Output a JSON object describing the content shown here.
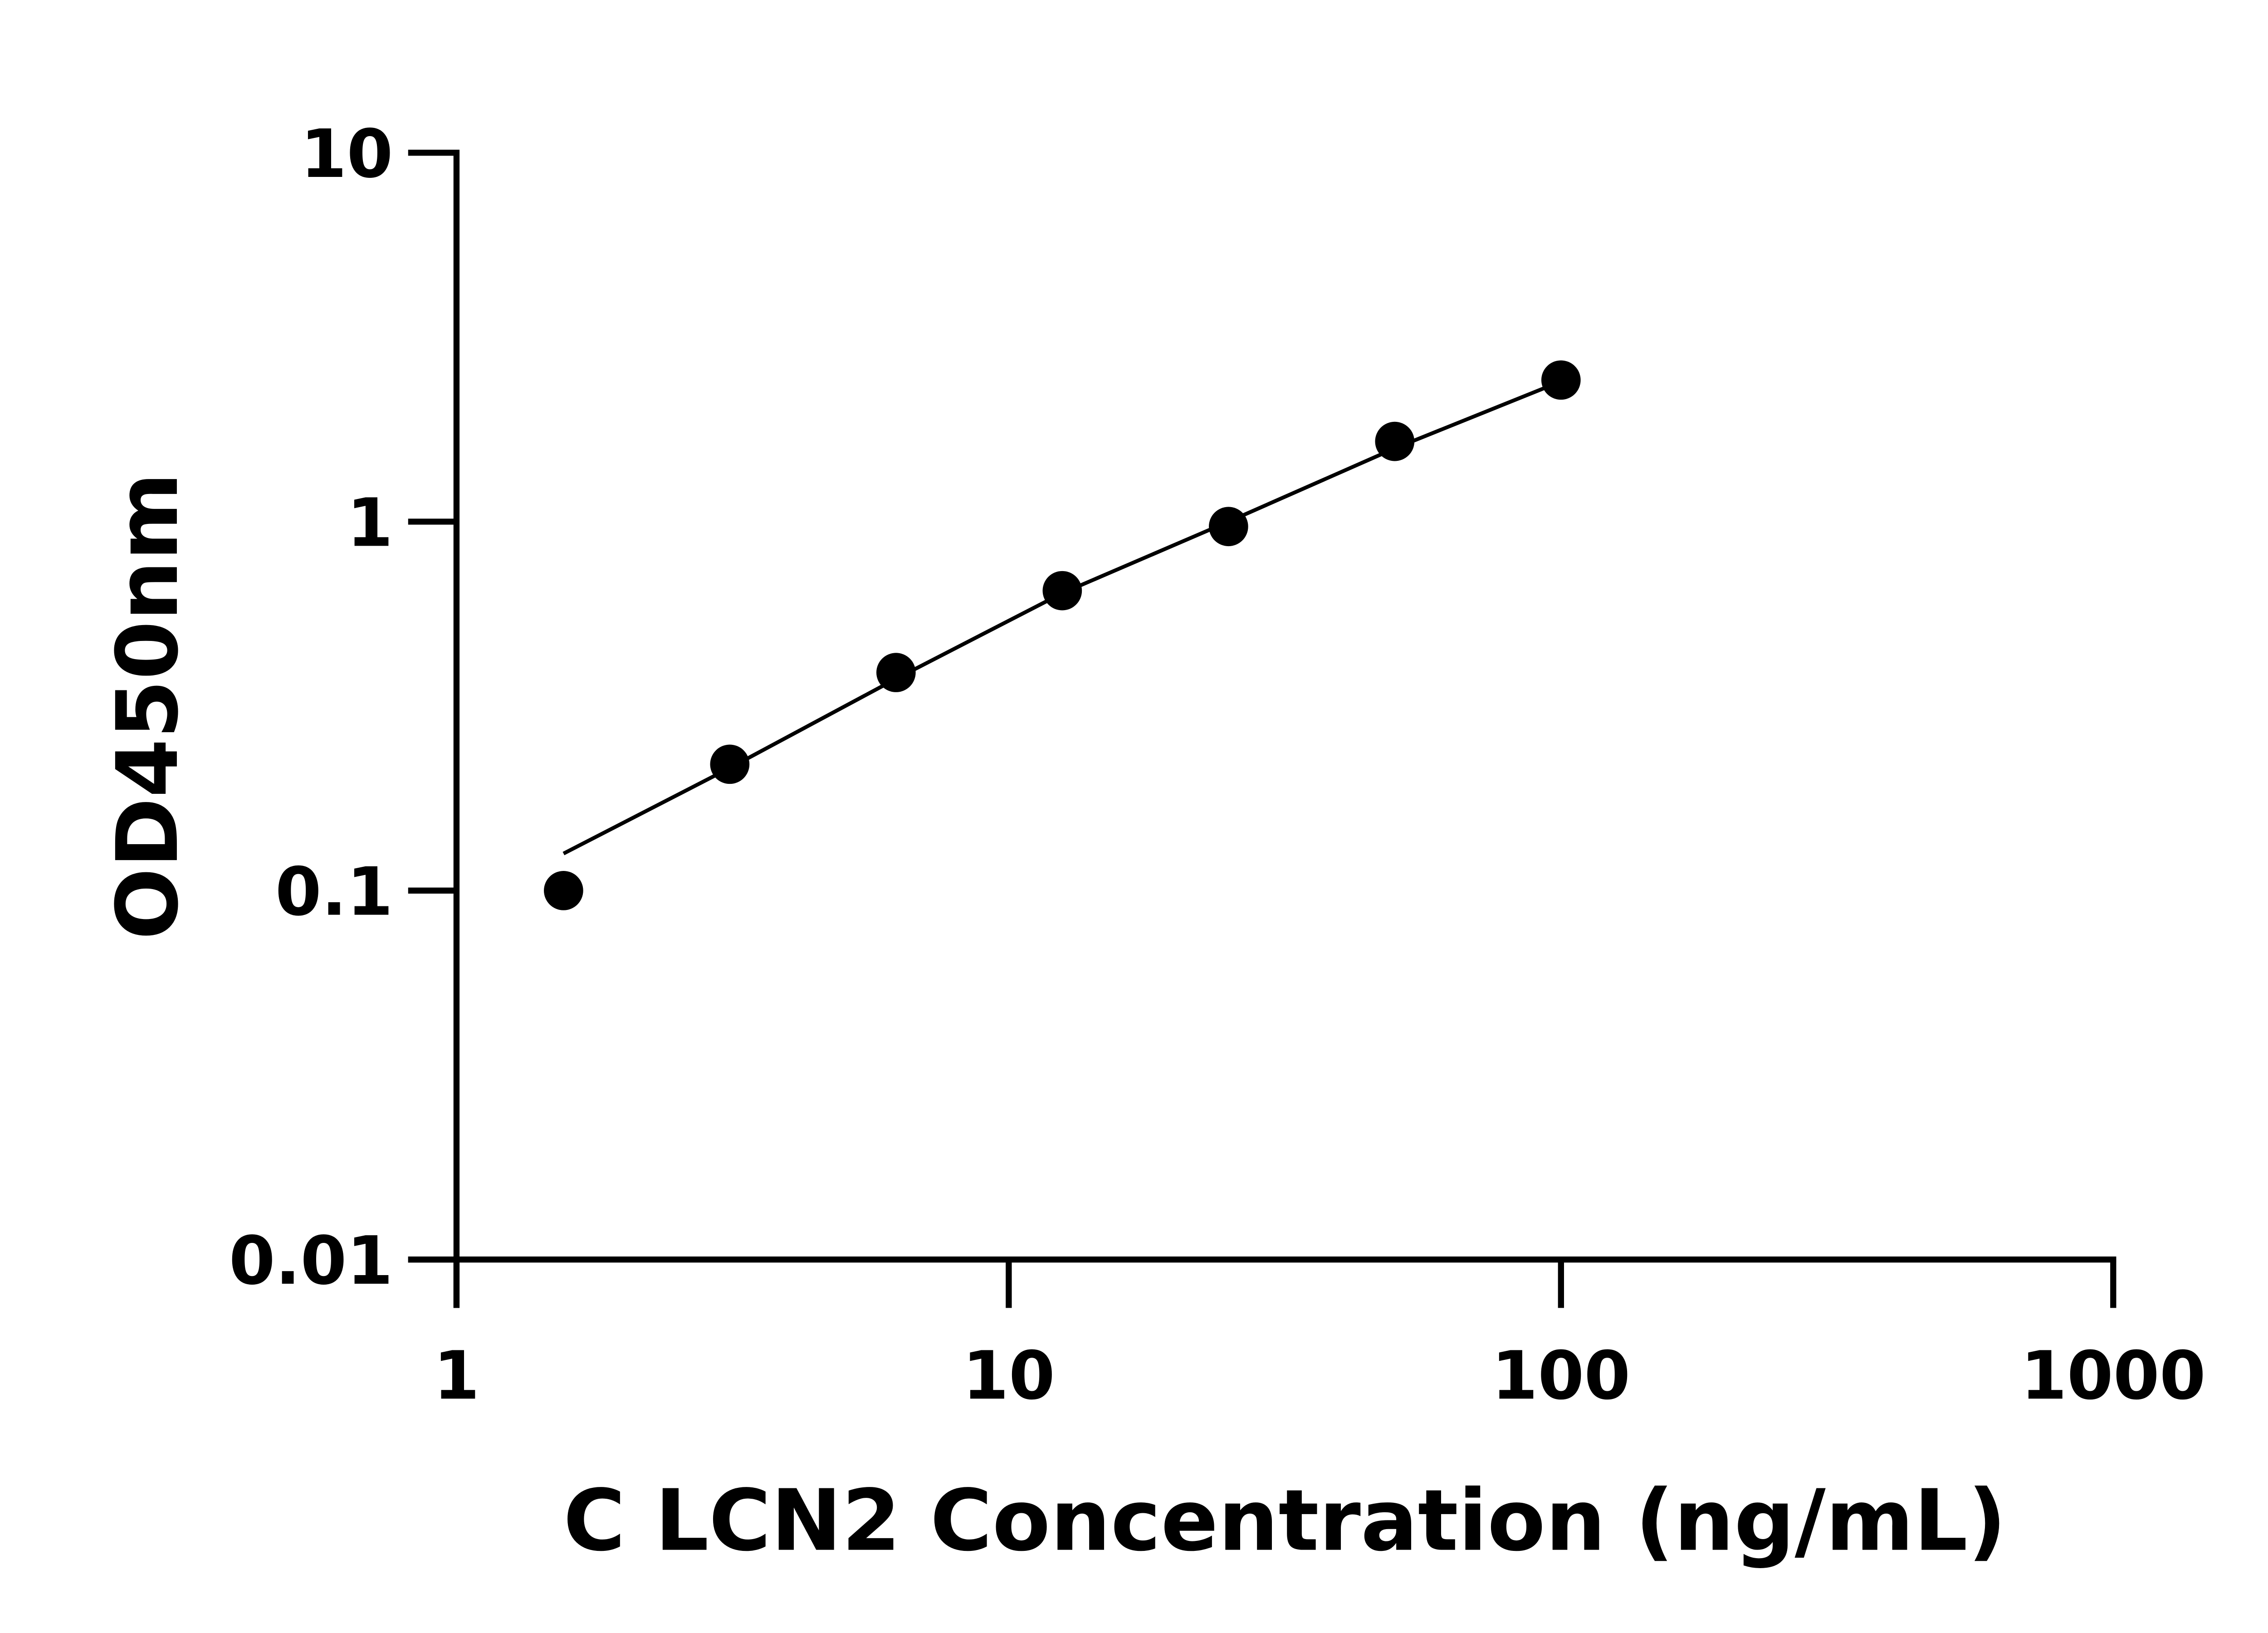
{
  "chart_data": {
    "type": "scatter",
    "xlabel": "C LCN2 Concentration (ng/mL)",
    "ylabel": "OD450nm",
    "xscale": "log",
    "yscale": "log",
    "xlim": [
      1,
      1000
    ],
    "ylim": [
      0.01,
      10
    ],
    "x_ticks": [
      "1",
      "10",
      "100",
      "1000"
    ],
    "y_ticks": [
      "0.01",
      "0.1",
      "1",
      "10"
    ],
    "grid": false,
    "legend": "none",
    "marker_color": "#000000",
    "series": [
      {
        "x": [
          1.5625,
          3.125,
          6.25,
          12.5,
          25,
          50,
          100
        ],
        "y": [
          0.1,
          0.22,
          0.39,
          0.65,
          0.97,
          1.65,
          2.42
        ]
      }
    ],
    "fit_curve": {
      "x": [
        1.5625,
        3.125,
        6.25,
        12.5,
        25,
        50,
        100
      ],
      "y": [
        0.126,
        0.215,
        0.375,
        0.64,
        1.0,
        1.58,
        2.4
      ]
    }
  }
}
